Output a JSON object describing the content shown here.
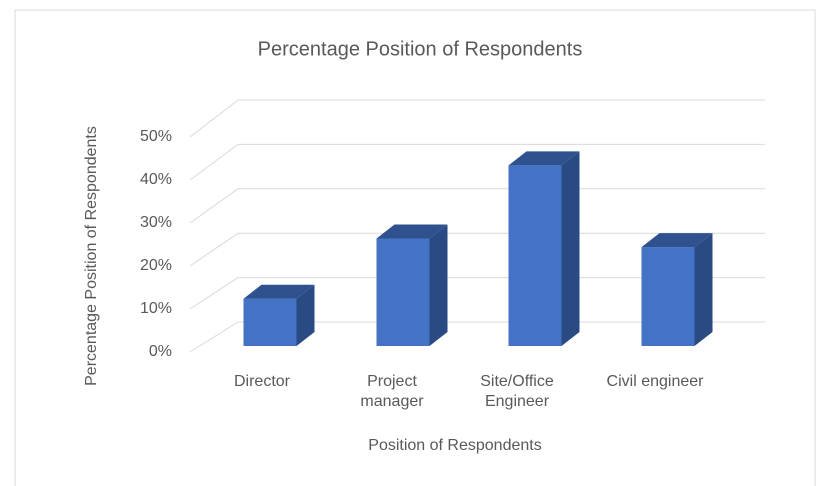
{
  "chart_data": {
    "type": "bar3d",
    "title": "Percentage Position of Respondents",
    "x_label": "Position of Respondents",
    "y_label": "Percentage Position of Respondents",
    "categories": [
      "Director",
      "Project manager",
      "Site/Office Engineer",
      "Civil engineer"
    ],
    "values": [
      11,
      25,
      42,
      23
    ],
    "color": "#4472c4",
    "ylim": [
      0,
      50
    ],
    "yticks": [
      {
        "value": 0,
        "label": "0%"
      },
      {
        "value": 10,
        "label": "10%"
      },
      {
        "value": 20,
        "label": "20%"
      },
      {
        "value": 30,
        "label": "30%"
      },
      {
        "value": 40,
        "label": "40%"
      },
      {
        "value": 50,
        "label": "50%"
      }
    ],
    "grid": true
  }
}
